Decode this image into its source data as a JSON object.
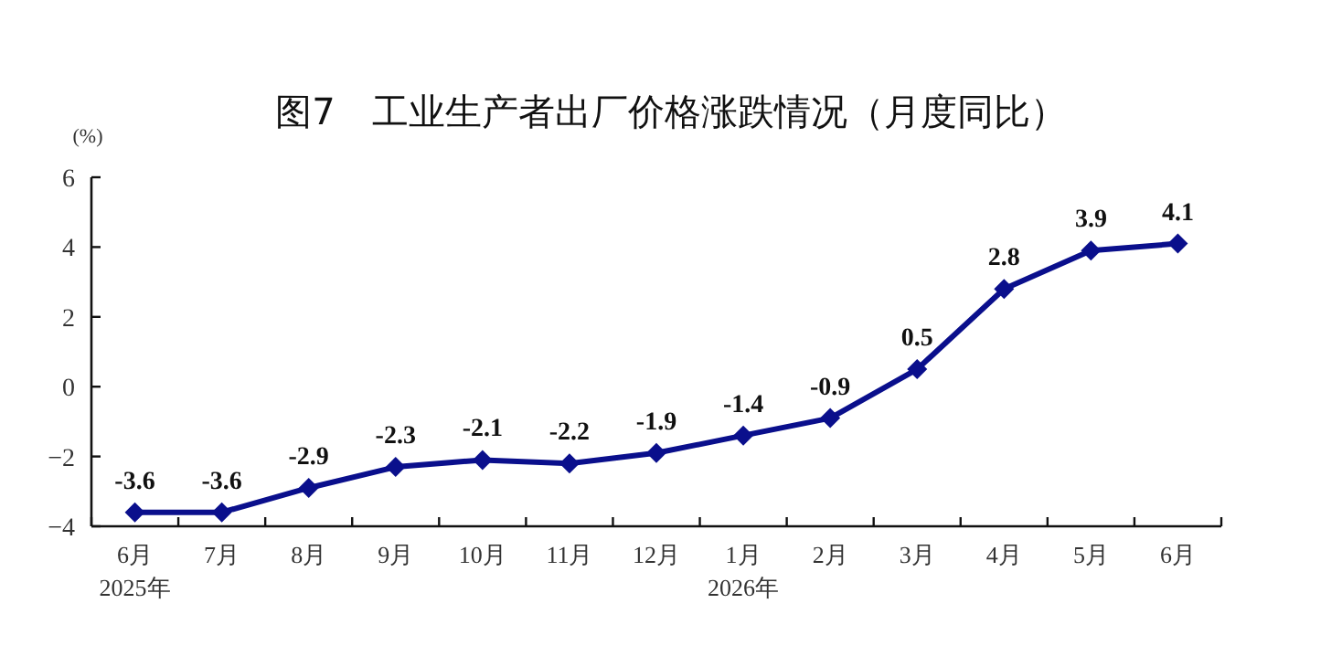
{
  "chart_data": {
    "type": "line",
    "title": "图7　工业生产者出厂价格涨跌情况（月度同比）",
    "ylabel": "(%)",
    "categories": [
      "6月 2025年",
      "7月",
      "8月",
      "9月",
      "10月",
      "11月",
      "12月",
      "1月 2026年",
      "2月",
      "3月",
      "4月",
      "5月",
      "6月"
    ],
    "series": [
      {
        "color": "#0a0f8c",
        "values": [
          -3.6,
          -3.6,
          -2.9,
          -2.3,
          -2.1,
          -2.2,
          -1.9,
          -1.4,
          -0.9,
          0.5,
          2.8,
          3.9,
          4.1
        ]
      }
    ],
    "ylim": [
      -4,
      6
    ],
    "yticks": [
      -4,
      -2,
      0,
      2,
      4,
      6
    ],
    "data_labels": true,
    "marker": "diamond",
    "line_style": "solid",
    "grid": false
  }
}
